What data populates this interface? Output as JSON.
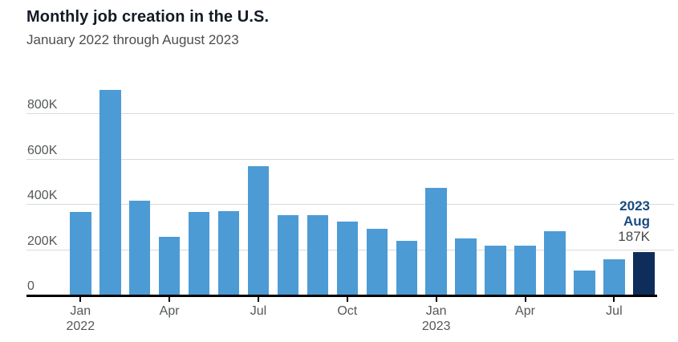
{
  "header": {
    "title": "Monthly job creation in the U.S.",
    "subtitle": "January 2022 through August 2023"
  },
  "chart_data": {
    "type": "bar",
    "title": "Monthly job creation in the U.S.",
    "subtitle": "January 2022 through August 2023",
    "x": [
      "Jan 2022",
      "Feb 2022",
      "Mar 2022",
      "Apr 2022",
      "May 2022",
      "Jun 2022",
      "Jul 2022",
      "Aug 2022",
      "Sep 2022",
      "Oct 2022",
      "Nov 2022",
      "Dec 2022",
      "Jan 2023",
      "Feb 2023",
      "Mar 2023",
      "Apr 2023",
      "May 2023",
      "Jun 2023",
      "Jul 2023",
      "Aug 2023"
    ],
    "values": [
      364,
      904,
      414,
      254,
      364,
      370,
      568,
      352,
      350,
      324,
      290,
      239,
      472,
      248,
      217,
      217,
      281,
      105,
      157,
      187
    ],
    "unit": "K",
    "ylim": [
      0,
      800
    ],
    "yticks": [
      0,
      200,
      400,
      600,
      800
    ],
    "ytick_labels": [
      "0",
      "200K",
      "400K",
      "600K",
      "800K"
    ],
    "xticks": [
      {
        "index": 0,
        "label": "Jan",
        "sublabel": "2022"
      },
      {
        "index": 3,
        "label": "Apr"
      },
      {
        "index": 6,
        "label": "Jul"
      },
      {
        "index": 9,
        "label": "Oct"
      },
      {
        "index": 12,
        "label": "Jan",
        "sublabel": "2023"
      },
      {
        "index": 15,
        "label": "Apr"
      },
      {
        "index": 18,
        "label": "Jul"
      }
    ],
    "highlight_index": 19,
    "annotation": {
      "line1": "2023",
      "line2": "Aug",
      "line3": "187K"
    },
    "grid": "horizontal",
    "legend": "none",
    "colors": {
      "bar": "#4c9bd5",
      "highlight": "#0e2d5b",
      "annotation_text": "#1a4b80",
      "annotation_value": "#47494c",
      "gridline": "#d8dadc",
      "axis": "#000000",
      "axis_label": "#54585a",
      "title": "#141b24",
      "subtitle": "#4d4d4d"
    }
  }
}
